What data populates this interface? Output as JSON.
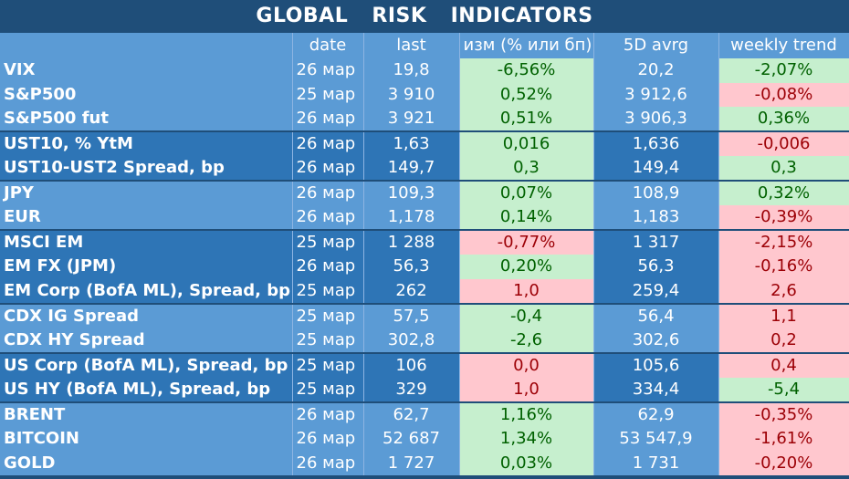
{
  "title": "GLOBAL RISK INDICATORS",
  "columns": [
    "",
    "date",
    "last",
    "изм (% или бп)",
    "5D avrg",
    "weekly trend"
  ],
  "rows": [
    {
      "name": "VIX",
      "date": "26 мар",
      "last": "19,8",
      "change": "-6,56%",
      "change_sign": "pos",
      "avg5d": "20,2",
      "trend": "-2,07%",
      "trend_sign": "pos",
      "group": "light",
      "sep": false
    },
    {
      "name": "S&P500",
      "date": "25 мар",
      "last": "3 910",
      "change": "0,52%",
      "change_sign": "pos",
      "avg5d": "3 912,6",
      "trend": "-0,08%",
      "trend_sign": "neg",
      "group": "light",
      "sep": false
    },
    {
      "name": "S&P500 fut",
      "date": "26 мар",
      "last": "3 921",
      "change": "0,51%",
      "change_sign": "pos",
      "avg5d": "3 906,3",
      "trend": "0,36%",
      "trend_sign": "pos",
      "group": "light",
      "sep": false
    },
    {
      "name": "UST10, % YtM",
      "date": "26 мар",
      "last": "1,63",
      "change": "0,016",
      "change_sign": "pos",
      "avg5d": "1,636",
      "trend": "-0,006",
      "trend_sign": "neg",
      "group": "dark",
      "sep": true
    },
    {
      "name": "UST10-UST2 Spread, bp",
      "date": "26 мар",
      "last": "149,7",
      "change": "0,3",
      "change_sign": "pos",
      "avg5d": "149,4",
      "trend": "0,3",
      "trend_sign": "pos",
      "group": "dark",
      "sep": false
    },
    {
      "name": "JPY",
      "date": "26 мар",
      "last": "109,3",
      "change": "0,07%",
      "change_sign": "pos",
      "avg5d": "108,9",
      "trend": "0,32%",
      "trend_sign": "pos",
      "group": "light",
      "sep": true
    },
    {
      "name": "EUR",
      "date": "26 мар",
      "last": "1,178",
      "change": "0,14%",
      "change_sign": "pos",
      "avg5d": "1,183",
      "trend": "-0,39%",
      "trend_sign": "neg",
      "group": "light",
      "sep": false
    },
    {
      "name": "MSCI EM",
      "date": "25 мар",
      "last": "1 288",
      "change": "-0,77%",
      "change_sign": "neg",
      "avg5d": "1 317",
      "trend": "-2,15%",
      "trend_sign": "neg",
      "group": "dark",
      "sep": true
    },
    {
      "name": "EM FX (JPM)",
      "date": "26 мар",
      "last": "56,3",
      "change": "0,20%",
      "change_sign": "pos",
      "avg5d": "56,3",
      "trend": "-0,16%",
      "trend_sign": "neg",
      "group": "dark",
      "sep": false
    },
    {
      "name": "EM Corp (BofA ML), Spread, bp",
      "date": "25 мар",
      "last": "262",
      "change": "1,0",
      "change_sign": "neg",
      "avg5d": "259,4",
      "trend": "2,6",
      "trend_sign": "neg",
      "group": "dark",
      "sep": false
    },
    {
      "name": "CDX IG Spread",
      "date": "25 мар",
      "last": "57,5",
      "change": "-0,4",
      "change_sign": "pos",
      "avg5d": "56,4",
      "trend": "1,1",
      "trend_sign": "neg",
      "group": "light",
      "sep": true
    },
    {
      "name": "CDX HY Spread",
      "date": "25 мар",
      "last": "302,8",
      "change": "-2,6",
      "change_sign": "pos",
      "avg5d": "302,6",
      "trend": "0,2",
      "trend_sign": "neg",
      "group": "light",
      "sep": false
    },
    {
      "name": "US Corp (BofA ML), Spread, bp",
      "date": "25 мар",
      "last": "106",
      "change": "0,0",
      "change_sign": "neg",
      "avg5d": "105,6",
      "trend": "0,4",
      "trend_sign": "neg",
      "group": "dark",
      "sep": true
    },
    {
      "name": "US HY (BofA ML), Spread, bp",
      "date": "25 мар",
      "last": "329",
      "change": "1,0",
      "change_sign": "neg",
      "avg5d": "334,4",
      "trend": "-5,4",
      "trend_sign": "pos",
      "group": "dark",
      "sep": false
    },
    {
      "name": "BRENT",
      "date": "26 мар",
      "last": "62,7",
      "change": "1,16%",
      "change_sign": "pos",
      "avg5d": "62,9",
      "trend": "-0,35%",
      "trend_sign": "neg",
      "group": "light",
      "sep": true
    },
    {
      "name": "BITCOIN",
      "date": "26 мар",
      "last": "52 687",
      "change": "1,34%",
      "change_sign": "pos",
      "avg5d": "53 547,9",
      "trend": "-1,61%",
      "trend_sign": "neg",
      "group": "light",
      "sep": false
    },
    {
      "name": "GOLD",
      "date": "26 мар",
      "last": "1 727",
      "change": "0,03%",
      "change_sign": "pos",
      "avg5d": "1 731",
      "trend": "-0,20%",
      "trend_sign": "neg",
      "group": "light",
      "sep": false
    }
  ]
}
